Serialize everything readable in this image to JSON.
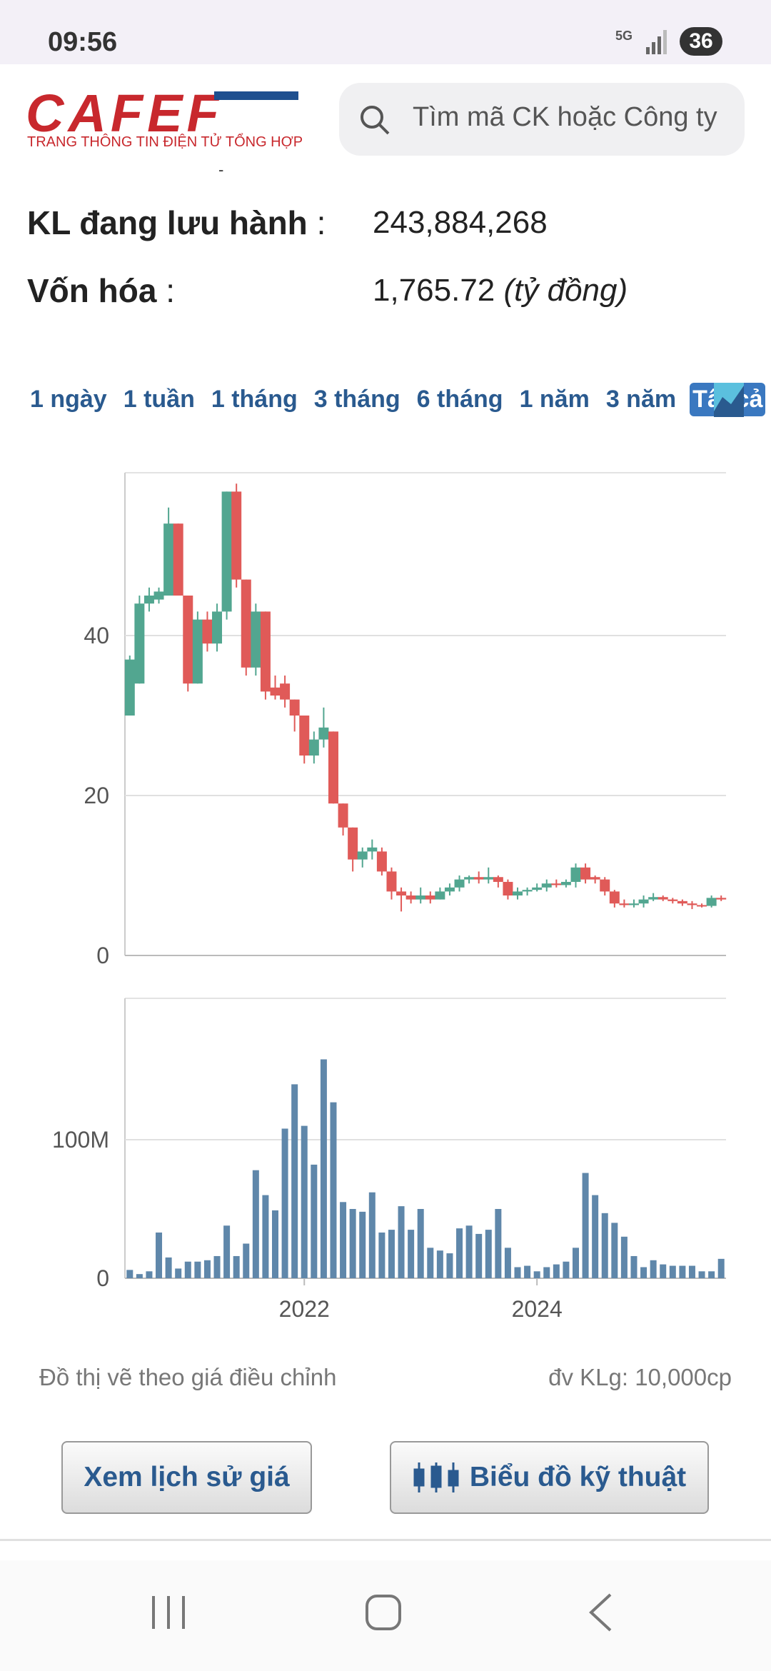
{
  "status": {
    "time": "09:56",
    "network": "5G",
    "battery": "36"
  },
  "header": {
    "logo": "CAFEF",
    "tagline": "TRANG THÔNG TIN ĐIỆN TỬ TỔNG HỢP",
    "search_placeholder": "Tìm mã CK hoặc Công ty",
    "separator": "-"
  },
  "stats": [
    {
      "label": "KL đang lưu hành",
      "colon": ":",
      "value": "243,884,268"
    },
    {
      "label": "Vốn hóa",
      "colon": ":",
      "value": "1,765.72",
      "unit": "(tỷ đồng)"
    }
  ],
  "tabs": [
    "1 ngày",
    "1 tuần",
    "1 tháng",
    "3 tháng",
    "6 tháng",
    "1 năm",
    "3 năm",
    "Tất cả"
  ],
  "active_tab": "Tất cả",
  "chart_data": [
    {
      "type": "candlestick",
      "up_color": "#52a690",
      "down_color": "#e05a58",
      "open": [
        30,
        34,
        44,
        44.5,
        45,
        54,
        45,
        34,
        42,
        39,
        43,
        58,
        47,
        36,
        43,
        33.5,
        34,
        32,
        30,
        25,
        27,
        28,
        19,
        16,
        12,
        13,
        13,
        10.5,
        8,
        7.5,
        7,
        7.5,
        7,
        8,
        8.5,
        9.5,
        9.8,
        9.5,
        9.8,
        9.2,
        7.5,
        8,
        8.2,
        8.5,
        9,
        8.8,
        9.2,
        11,
        9.8,
        9.5,
        8,
        6.5,
        6.3,
        6.5,
        7,
        7.3,
        7,
        6.8,
        6.5,
        6.3,
        6.2,
        7.2
      ],
      "high": [
        37.5,
        45,
        46,
        46,
        56,
        54,
        45,
        43,
        43,
        44,
        58,
        59,
        47,
        44,
        43,
        35,
        35,
        32,
        30,
        28,
        31,
        28,
        19,
        16,
        13.5,
        14.5,
        13.5,
        11,
        8.5,
        8,
        8.5,
        8,
        8.5,
        9,
        10,
        10,
        10.5,
        11,
        10,
        9.5,
        8.5,
        8.5,
        9,
        9.5,
        9.5,
        9.5,
        11.5,
        11.5,
        10,
        9.8,
        8.2,
        7,
        7,
        7.5,
        7.8,
        7.5,
        7.2,
        7,
        6.8,
        6.5,
        7.5,
        7.5
      ],
      "low": [
        30,
        34,
        43,
        44,
        45,
        45,
        33,
        34,
        38,
        38,
        42,
        46,
        35,
        35,
        32,
        32,
        31,
        28,
        24,
        24,
        26,
        19,
        15,
        10.5,
        11,
        12,
        10,
        7,
        5.5,
        6.5,
        6.5,
        6.5,
        7,
        7.5,
        8,
        9,
        9,
        9,
        8.5,
        7,
        7,
        7.5,
        8,
        8,
        8.5,
        8.5,
        8.5,
        9,
        9,
        7.5,
        6,
        6,
        6,
        6,
        6.8,
        6.8,
        6.5,
        6.2,
        5.8,
        6,
        6,
        6.8
      ],
      "close": [
        37,
        44,
        45,
        45.5,
        54,
        45,
        34,
        42,
        39,
        43,
        58,
        47,
        36,
        43,
        33,
        32.5,
        32,
        30,
        25,
        27,
        28.5,
        19,
        16,
        12,
        13,
        13.5,
        10.5,
        8,
        7.5,
        7,
        7.5,
        7,
        8,
        8.5,
        9.5,
        9.8,
        9.5,
        9.8,
        9.2,
        7.5,
        8,
        8.2,
        8.5,
        9,
        8.8,
        9.2,
        11,
        9.5,
        9.5,
        8,
        6.5,
        6.3,
        6.5,
        7,
        7.3,
        7,
        6.8,
        6.5,
        6.3,
        6.2,
        7.2,
        7
      ],
      "ylim": [
        0,
        60
      ],
      "yticks": [
        0,
        20,
        40
      ],
      "grid": true
    },
    {
      "type": "bar",
      "color": "#5f87aa",
      "categories": [
        null,
        null,
        null,
        null,
        null,
        null,
        null,
        null,
        null,
        null,
        null,
        null,
        null,
        null,
        null,
        null,
        null,
        null,
        "2022",
        null,
        null,
        null,
        null,
        null,
        null,
        null,
        null,
        null,
        null,
        null,
        null,
        null,
        null,
        null,
        null,
        null,
        null,
        null,
        null,
        null,
        null,
        null,
        "2024",
        null,
        null,
        null,
        null,
        null,
        null,
        null,
        null,
        null,
        null,
        null,
        null,
        null,
        null,
        null,
        null,
        null,
        null,
        null
      ],
      "values": [
        6000000,
        3000000,
        5000000,
        33000000,
        15000000,
        7000000,
        12000000,
        12000000,
        13000000,
        16000000,
        38000000,
        16000000,
        25000000,
        78000000,
        60000000,
        49000000,
        108000000,
        140000000,
        110000000,
        82000000,
        158000000,
        127000000,
        55000000,
        50000000,
        48000000,
        62000000,
        33000000,
        35000000,
        52000000,
        35000000,
        50000000,
        22000000,
        20000000,
        18000000,
        36000000,
        38000000,
        32000000,
        35000000,
        50000000,
        22000000,
        8000000,
        9000000,
        5000000,
        8000000,
        10000000,
        12000000,
        22000000,
        76000000,
        60000000,
        47000000,
        40000000,
        30000000,
        16000000,
        8000000,
        13000000,
        10000000,
        9000000,
        9000000,
        9000000,
        5000000,
        5000000,
        14000000
      ],
      "ylim": [
        0,
        200000000
      ],
      "yticks": [
        0,
        {
          "value": 100000000,
          "label": "100M"
        }
      ],
      "grid": true
    }
  ],
  "notes": {
    "left": "Đồ thị vẽ theo giá điều chỉnh",
    "right": "đv KLg: 10,000cp"
  },
  "buttons": [
    "Xem lịch sử giá",
    "Biểu đồ kỹ thuật"
  ]
}
